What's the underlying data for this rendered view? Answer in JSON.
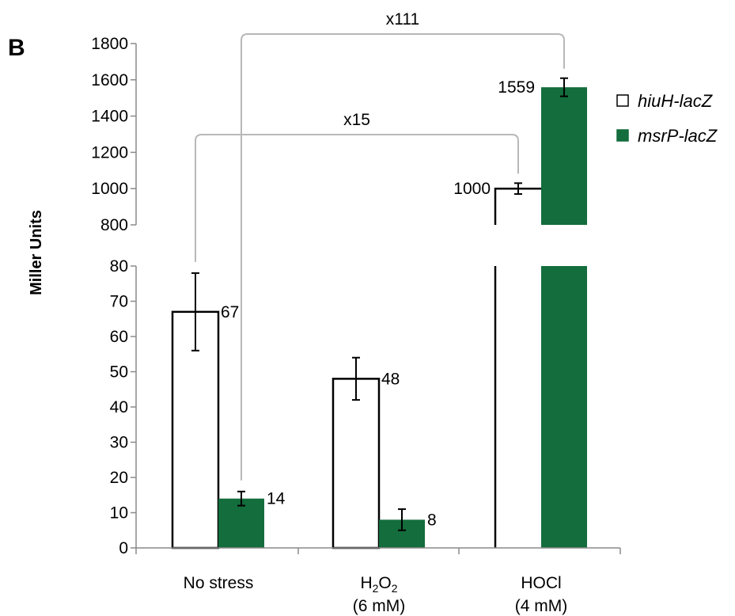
{
  "panel_label": "B",
  "chart_data": {
    "type": "bar",
    "ylabel": "Miller Units",
    "xlabel": "",
    "y_axis_break": true,
    "lower_axis": {
      "ylim": [
        0,
        80
      ],
      "ticks": [
        "0",
        "10",
        "20",
        "30",
        "40",
        "50",
        "60",
        "70",
        "80"
      ]
    },
    "upper_axis": {
      "ylim": [
        800,
        1800
      ],
      "ticks": [
        "800",
        "1000",
        "1200",
        "1400",
        "1600",
        "1800"
      ]
    },
    "categories": [
      {
        "line1_parts": [
          "No stress"
        ],
        "line2": ""
      },
      {
        "line1_parts": [
          "H",
          "2",
          "O",
          "2"
        ],
        "line2": "(6 mM)"
      },
      {
        "line1_parts": [
          "HOCl"
        ],
        "line2": "(4 mM)"
      }
    ],
    "series": [
      {
        "name": "hiuH-lacZ",
        "color": "#ffffff",
        "stroke": "#000000",
        "values": [
          67,
          48,
          1000
        ],
        "errors": [
          11,
          6,
          30
        ],
        "labels": [
          "67",
          "48",
          "1000"
        ]
      },
      {
        "name": "msrP-lacZ",
        "color": "#136d3c",
        "stroke": "#136d3c",
        "values": [
          14,
          8,
          1559
        ],
        "errors": [
          2,
          3,
          50
        ],
        "labels": [
          "14",
          "8",
          "1559"
        ]
      }
    ],
    "annotations": [
      {
        "text": "x15",
        "from_category": 0,
        "from_series": 0,
        "to_category": 2,
        "to_series": 0
      },
      {
        "text": "x111",
        "from_category": 0,
        "from_series": 1,
        "to_category": 2,
        "to_series": 1
      }
    ],
    "legend": "right",
    "grid": false
  }
}
